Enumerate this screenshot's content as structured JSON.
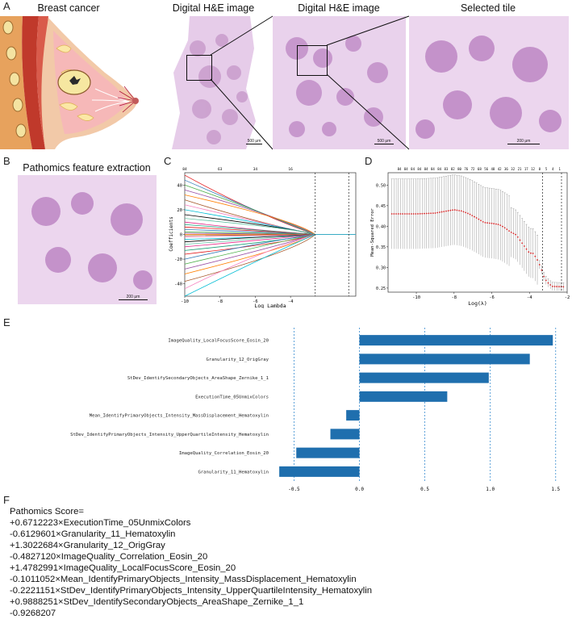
{
  "panels": {
    "A": {
      "letter": "A",
      "titles": [
        "Breast cancer",
        "Digital H&E image",
        "Digital H&E image",
        "Selected tile"
      ],
      "scalebars": [
        "500 μm",
        "500 μm",
        "200 μm"
      ]
    },
    "B": {
      "letter": "B",
      "title": "Pathomics feature extraction",
      "scalebar": "200 μm"
    },
    "C": {
      "letter": "C"
    },
    "D": {
      "letter": "D"
    },
    "E": {
      "letter": "E"
    },
    "F": {
      "letter": "F",
      "lines": [
        "Pathomics Score=",
        "+0.6712223×ExecutionTime_05UnmixColors",
        "-0.6129601×Granularity_11_Hematoxylin",
        "+1.3022684×Granularity_12_OrigGray",
        "-0.4827120×ImageQuality_Correlation_Eosin_20",
        "+1.4782991×ImageQuality_LocalFocusScore_Eosin_20",
        "-0.1011052×Mean_IdentifyPrimaryObjects_Intensity_MassDisplacement_Hematoxylin",
        "-0.2221151×StDev_IdentifyPrimaryObjects_Intensity_UpperQuartileIntensity_Hematoxylin",
        "+0.9888251×StDev_IdentifySecondaryObjects_AreaShape_Zernike_1_1",
        "-0.9268207"
      ]
    }
  },
  "colors": {
    "he_bg": "#ead6ec",
    "he_dark": "#b67bbf",
    "bar": "#1f6fae",
    "lasso_red": "#d62728"
  },
  "chart_data": [
    {
      "id": "C",
      "type": "line",
      "xlabel": "Log Lambda",
      "ylabel": "Coefficients",
      "xlim": [
        -10,
        -0.3
      ],
      "ylim": [
        -50,
        50
      ],
      "xticks": [
        -10,
        -8,
        -6,
        -4
      ],
      "yticks": [
        -40,
        -20,
        0,
        20,
        40
      ],
      "top_ticks": [
        {
          "x": -10,
          "label": "84"
        },
        {
          "x": -8,
          "label": "63"
        },
        {
          "x": -6,
          "label": "34"
        },
        {
          "x": -4,
          "label": "16"
        }
      ],
      "vlines": [
        -2.6,
        -0.7
      ],
      "series_endpoints": [
        48,
        44,
        40,
        36,
        32,
        28,
        24,
        20,
        16,
        13,
        10,
        8,
        6,
        4,
        2,
        1,
        0,
        -1,
        -2,
        -4,
        -6,
        -8,
        -10,
        -13,
        -16,
        -20,
        -24,
        -28,
        -32,
        -38,
        -44,
        -50
      ]
    },
    {
      "id": "D",
      "type": "scatter",
      "xlabel": "Log(λ)",
      "ylabel": "Mean-Squared Error",
      "xlim": [
        -11.5,
        -2
      ],
      "ylim": [
        0.24,
        0.53
      ],
      "xticks": [
        -10,
        -8,
        -6,
        -4,
        -2
      ],
      "yticks": [
        0.25,
        0.3,
        0.35,
        0.4,
        0.45,
        0.5
      ],
      "top_labels": [
        "84",
        "84",
        "84",
        "84",
        "84",
        "84",
        "84",
        "83",
        "82",
        "80",
        "76",
        "72",
        "68",
        "56",
        "48",
        "42",
        "36",
        "32",
        "21",
        "17",
        "12",
        "8",
        "5",
        "4",
        "1"
      ],
      "vlines": [
        -3.3,
        -2.3
      ],
      "curve": [
        [
          -11.3,
          0.43
        ],
        [
          -10,
          0.43
        ],
        [
          -9,
          0.432
        ],
        [
          -8.5,
          0.436
        ],
        [
          -8,
          0.44
        ],
        [
          -7.6,
          0.437
        ],
        [
          -7.2,
          0.43
        ],
        [
          -6.8,
          0.42
        ],
        [
          -6.4,
          0.409
        ],
        [
          -6.0,
          0.407
        ],
        [
          -5.6,
          0.404
        ],
        [
          -5.3,
          0.396
        ],
        [
          -5.0,
          0.386
        ],
        [
          -4.7,
          0.379
        ],
        [
          -4.5,
          0.366
        ],
        [
          -4.2,
          0.347
        ],
        [
          -4.0,
          0.335
        ],
        [
          -3.8,
          0.334
        ],
        [
          -3.6,
          0.32
        ],
        [
          -3.4,
          0.3
        ],
        [
          -3.2,
          0.273
        ],
        [
          -3.0,
          0.262
        ],
        [
          -2.8,
          0.254
        ],
        [
          -2.2,
          0.253
        ]
      ]
    },
    {
      "id": "E",
      "type": "bar",
      "orientation": "horizontal",
      "categories": [
        "ImageQuality_LocalFocusScore_Eosin_20",
        "Granularity_12_OrigGray",
        "StDev_IdentifySecondaryObjects_AreaShape_Zernike_1_1",
        "ExecutionTime_05UnmixColors",
        "Mean_IdentifyPrimaryObjects_Intensity_MassDisplacement_Hematoxylin",
        "StDev_IdentifyPrimaryObjects_Intensity_UpperQuartileIntensity_Hematoxylin",
        "ImageQuality_Correlation_Eosin_20",
        "Granularity_11_Hematoxylin"
      ],
      "values": [
        1.4783,
        1.3023,
        0.9888,
        0.6712,
        -0.1011,
        -0.2221,
        -0.4827,
        -0.613
      ],
      "xlim": [
        -0.62,
        1.52
      ],
      "xticks": [
        "-0.5",
        "0.0",
        "0.5",
        "1.0",
        "1.5"
      ],
      "grid_x": [
        -0.5,
        0,
        0.5,
        1.0,
        1.5
      ]
    }
  ]
}
